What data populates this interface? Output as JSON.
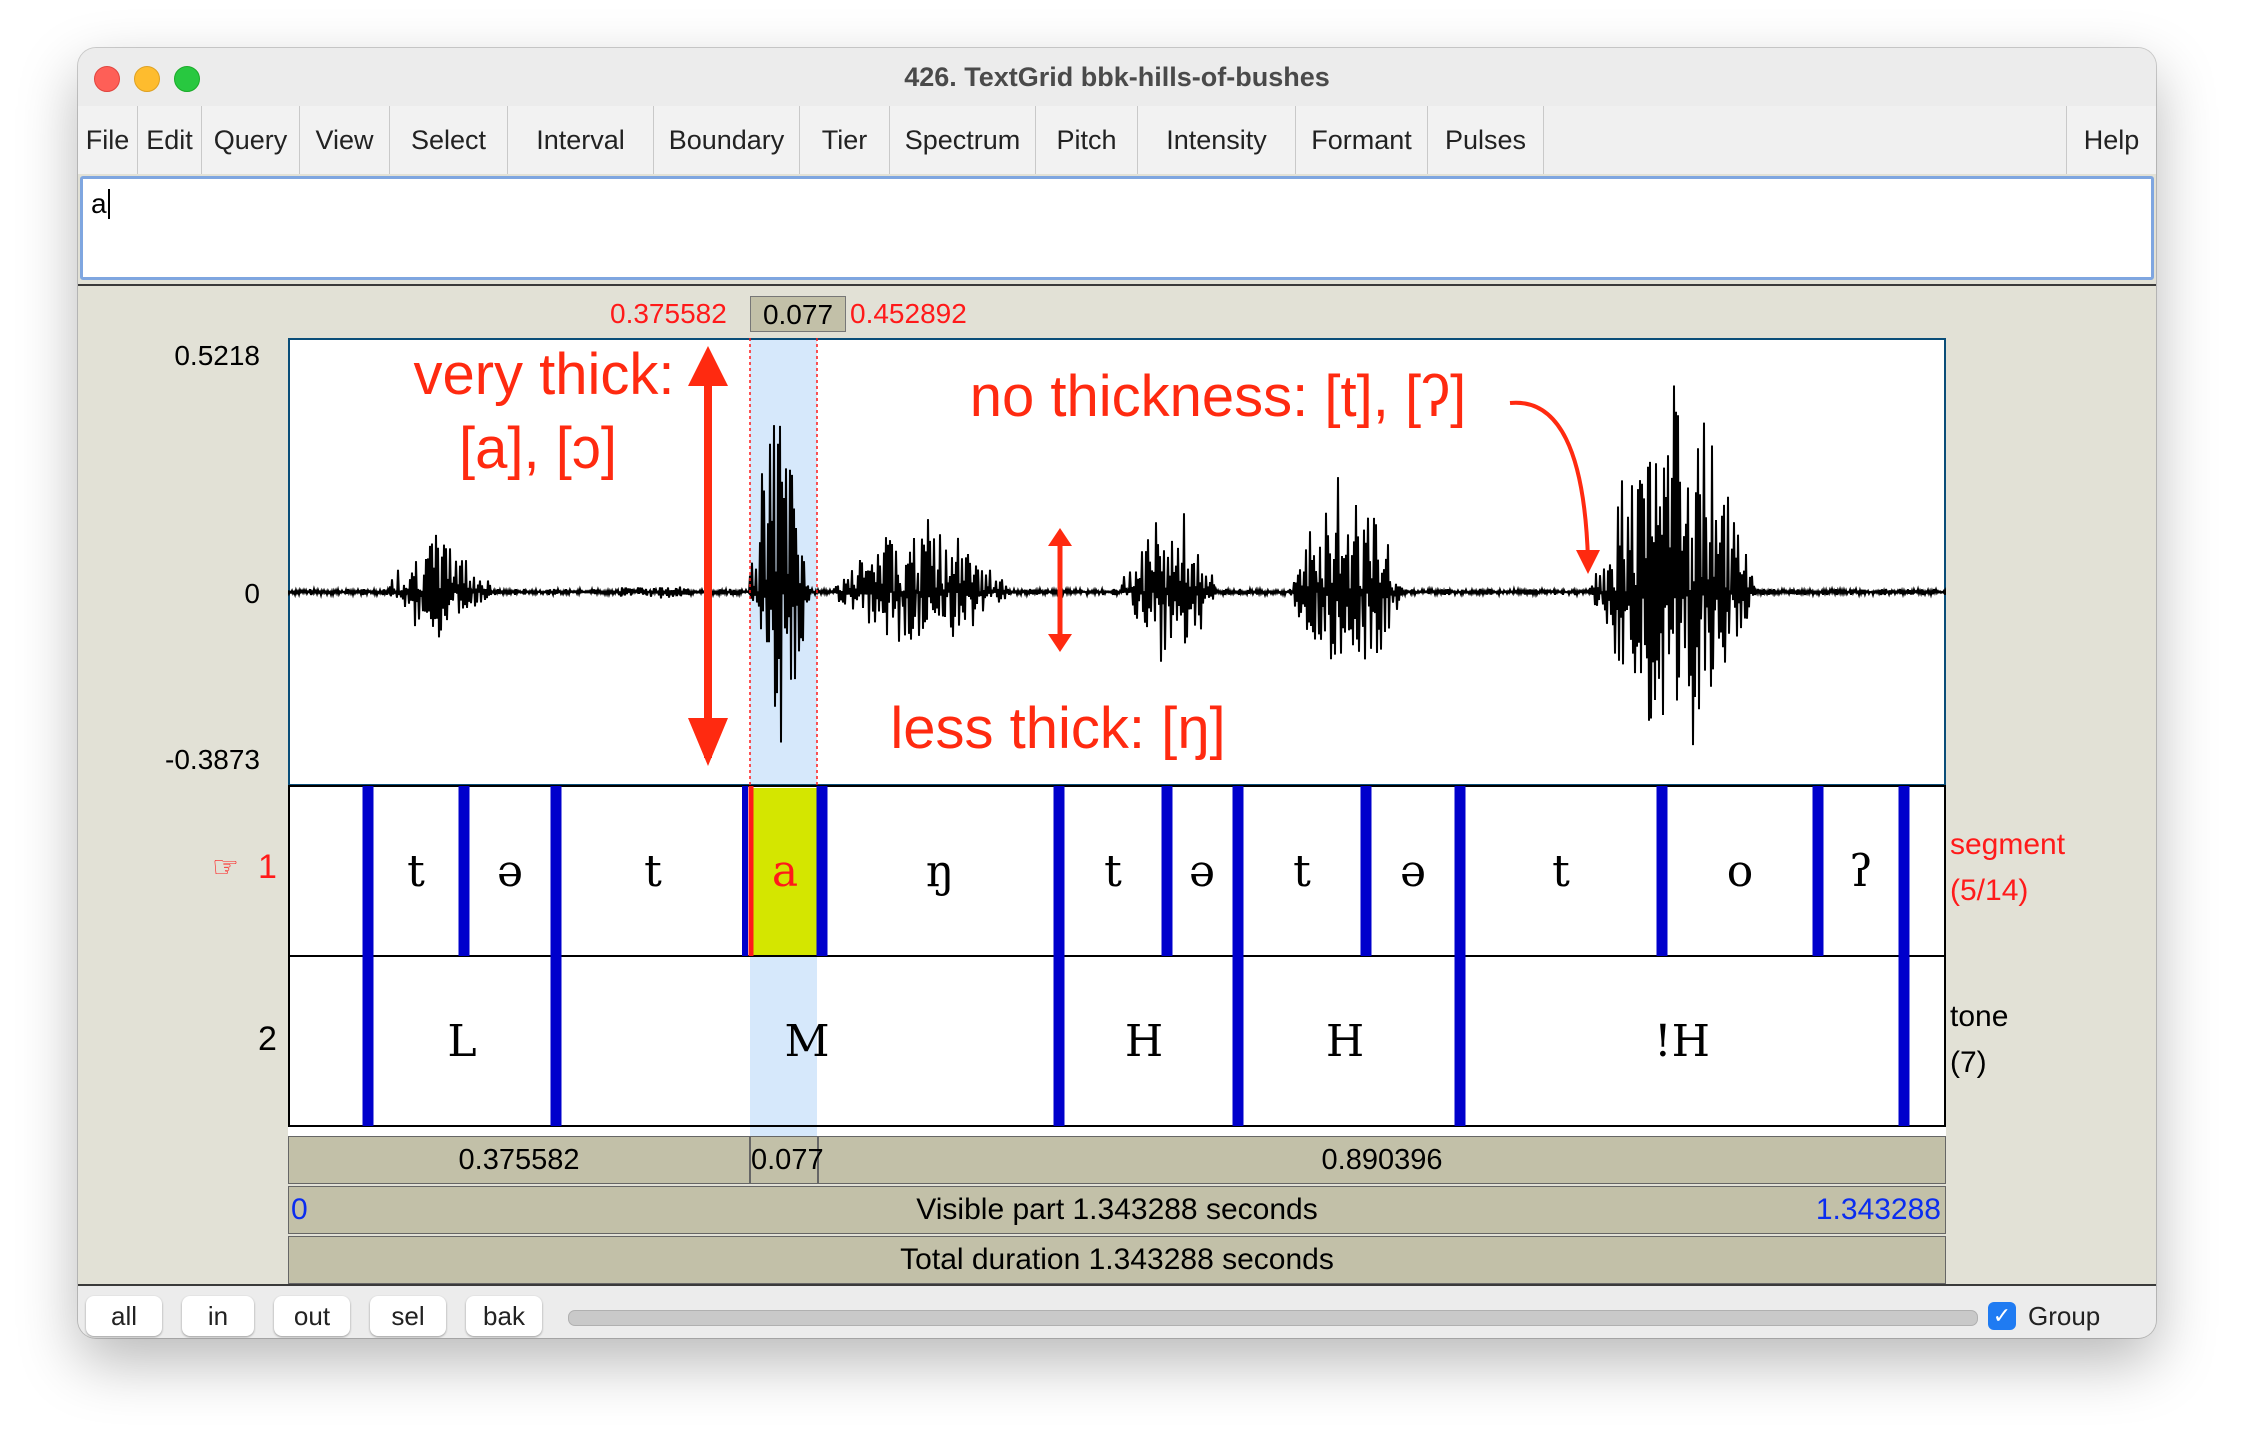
{
  "window": {
    "title": "426. TextGrid bbk-hills-of-bushes"
  },
  "menu": [
    {
      "label": "File"
    },
    {
      "label": "Edit"
    },
    {
      "label": "Query"
    },
    {
      "label": "View"
    },
    {
      "label": "Select"
    },
    {
      "label": "Interval"
    },
    {
      "label": "Boundary"
    },
    {
      "label": "Tier"
    },
    {
      "label": "Spectrum"
    },
    {
      "label": "Pitch"
    },
    {
      "label": "Intensity"
    },
    {
      "label": "Formant"
    },
    {
      "label": "Pulses"
    },
    {
      "label": "Help"
    }
  ],
  "textfield": {
    "value": "a"
  },
  "selection": {
    "start": "0.375582",
    "duration": "0.077",
    "end": "0.452892"
  },
  "waveform": {
    "ymax": "0.5218",
    "yzero": "0",
    "ymin": "-0.3873"
  },
  "annotations": {
    "very_thick_line1": "very thick:",
    "very_thick_line2": "[a], [ɔ]",
    "no_thickness": "no thickness: [t], [ʔ]",
    "less_thick": "less thick: [ŋ]"
  },
  "tiers": [
    {
      "number": "1",
      "name": "segment",
      "count": "(5/14)",
      "pointer": "☞",
      "intervals": [
        {
          "text": ""
        },
        {
          "text": "t"
        },
        {
          "text": "ə"
        },
        {
          "text": "t"
        },
        {
          "text": "a"
        },
        {
          "text": "ŋ"
        },
        {
          "text": "t"
        },
        {
          "text": "ə"
        },
        {
          "text": "t"
        },
        {
          "text": "ə"
        },
        {
          "text": "t"
        },
        {
          "text": "o"
        },
        {
          "text": "ʔ"
        },
        {
          "text": ""
        }
      ]
    },
    {
      "number": "2",
      "name": "tone",
      "count": "(7)",
      "intervals": [
        {
          "text": ""
        },
        {
          "text": "L"
        },
        {
          "text": "M"
        },
        {
          "text": "H"
        },
        {
          "text": "H"
        },
        {
          "text": "!H"
        },
        {
          "text": ""
        }
      ]
    }
  ],
  "durations": {
    "left": "0.375582",
    "selected": "0.077",
    "right": "0.890396"
  },
  "visible": {
    "start": "0",
    "label": "Visible part 1.343288 seconds",
    "end": "1.343288"
  },
  "total": {
    "label": "Total duration 1.343288 seconds"
  },
  "buttons": [
    {
      "label": "all"
    },
    {
      "label": "in"
    },
    {
      "label": "out"
    },
    {
      "label": "sel"
    },
    {
      "label": "bak"
    }
  ],
  "group": {
    "label": "Group",
    "checked": true
  },
  "colors": {
    "accent_red": "#ff1a1a",
    "boundary_blue": "#0000cc",
    "selection_blue": "#d6e8fb",
    "selected_interval": "#d4e600",
    "annotation_red": "#ff2a10"
  }
}
